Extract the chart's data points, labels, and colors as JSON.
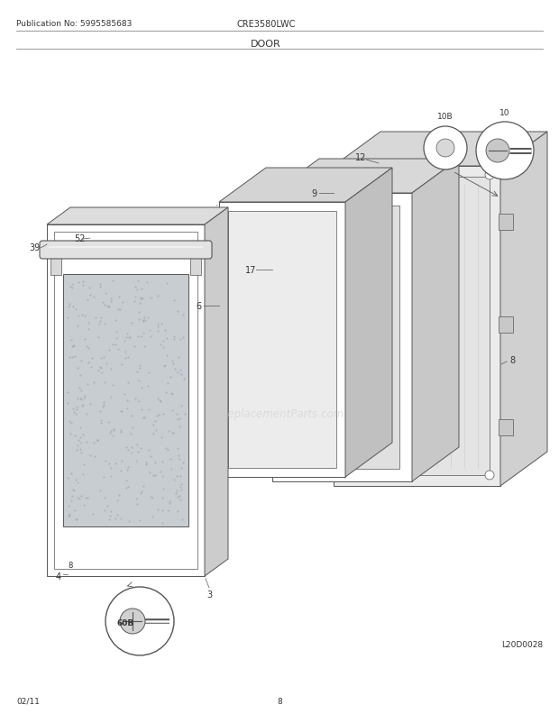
{
  "title": "DOOR",
  "pub_no": "Publication No: 5995585683",
  "model": "CRE3580LWC",
  "date": "02/11",
  "page": "8",
  "diagram_id": "L20D0028",
  "watermark": "eReplacementParts.com",
  "bg_color": "#ffffff",
  "line_color": "#555555",
  "fig_w": 6.2,
  "fig_h": 8.03,
  "dpi": 100
}
